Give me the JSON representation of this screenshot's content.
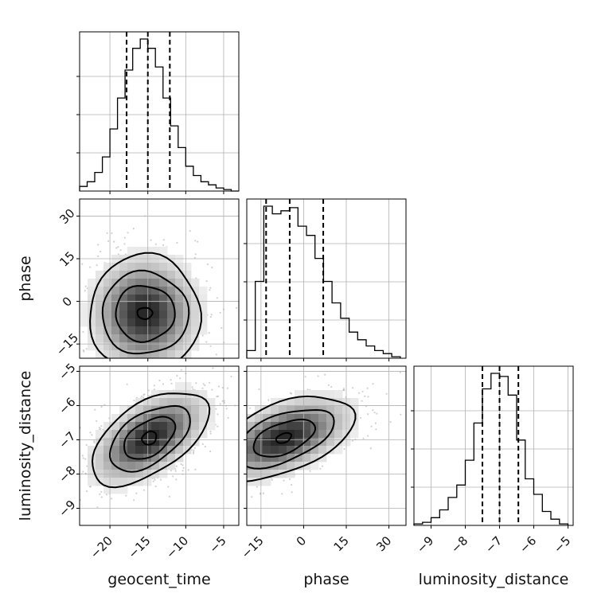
{
  "chart_data": {
    "type": "corner",
    "parameters": [
      {
        "name": "geocent_time",
        "range": [
          -24,
          -3
        ],
        "ticks": [
          -20,
          -15,
          -10,
          -5
        ]
      },
      {
        "name": "phase",
        "range": [
          -20,
          36
        ],
        "ticks": [
          -15,
          0,
          15,
          30
        ]
      },
      {
        "name": "luminosity_distance",
        "range": [
          -9.5,
          -4.85
        ],
        "ticks": [
          -9,
          -8,
          -7,
          -6,
          -5
        ]
      }
    ],
    "quantiles": {
      "geocent_time": [
        -17.8,
        -15.0,
        -12.1
      ],
      "phase": [
        -13.2,
        -4.9,
        6.9
      ],
      "luminosity_distance": [
        -7.5,
        -7.0,
        -6.45
      ]
    },
    "histograms": {
      "geocent_time": {
        "edges": [
          -24,
          -23,
          -22,
          -21,
          -20,
          -19,
          -18,
          -17,
          -16,
          -15,
          -14,
          -13,
          -12,
          -11,
          -10,
          -9,
          -8,
          -7,
          -6,
          -5,
          -4,
          -3
        ],
        "counts": [
          3,
          6,
          12,
          22,
          40,
          60,
          78,
          92,
          98,
          92,
          80,
          60,
          42,
          28,
          16,
          10,
          6,
          4,
          2,
          1,
          0
        ]
      },
      "phase": {
        "edges": [
          -20,
          -17,
          -14,
          -11,
          -8,
          -5,
          -2,
          1,
          4,
          7,
          10,
          13,
          16,
          19,
          22,
          25,
          28,
          31,
          34
        ],
        "counts": [
          5,
          50,
          99,
          94,
          96,
          98,
          86,
          80,
          65,
          50,
          36,
          26,
          17,
          12,
          8,
          5,
          3,
          1
        ]
      },
      "luminosity_distance": {
        "edges": [
          -9.5,
          -9.25,
          -9.0,
          -8.75,
          -8.5,
          -8.25,
          -8.0,
          -7.75,
          -7.5,
          -7.25,
          -7.0,
          -6.75,
          -6.5,
          -6.25,
          -6.0,
          -5.75,
          -5.5,
          -5.25,
          -5.0
        ],
        "counts": [
          1,
          2,
          5,
          10,
          18,
          26,
          42,
          66,
          88,
          98,
          96,
          84,
          55,
          30,
          20,
          9,
          4,
          1
        ]
      }
    },
    "contours": {
      "geocent_time_vs_phase": {
        "center": [
          -15.4,
          -4.2
        ],
        "levels": [
          {
            "rx": 7.3,
            "ry": 20.5,
            "angle": 0
          },
          {
            "rx": 5.7,
            "ry": 14.5,
            "angle": 0
          },
          {
            "rx": 3.9,
            "ry": 9.8,
            "angle": 0
          },
          {
            "rx": 1.0,
            "ry": 2.0,
            "angle": 0
          }
        ]
      },
      "geocent_time_vs_luminosity_distance": {
        "center": [
          -14.8,
          -6.95
        ],
        "levels": [
          {
            "rx": 8.8,
            "ry": 1.0,
            "angle": -34
          },
          {
            "rx": 6.0,
            "ry": 0.72,
            "angle": -34
          },
          {
            "rx": 3.8,
            "ry": 0.48,
            "angle": -34
          },
          {
            "rx": 1.0,
            "ry": 0.18,
            "angle": -34
          }
        ]
      },
      "phase_vs_luminosity_distance": {
        "center": [
          -7.0,
          -6.95
        ],
        "levels": [
          {
            "rx": 26.0,
            "ry": 1.0,
            "angle": -22
          },
          {
            "rx": 18.5,
            "ry": 0.68,
            "angle": -22
          },
          {
            "rx": 11.5,
            "ry": 0.44,
            "angle": -22
          },
          {
            "rx": 2.8,
            "ry": 0.13,
            "angle": -22
          }
        ]
      }
    },
    "grid": true
  }
}
